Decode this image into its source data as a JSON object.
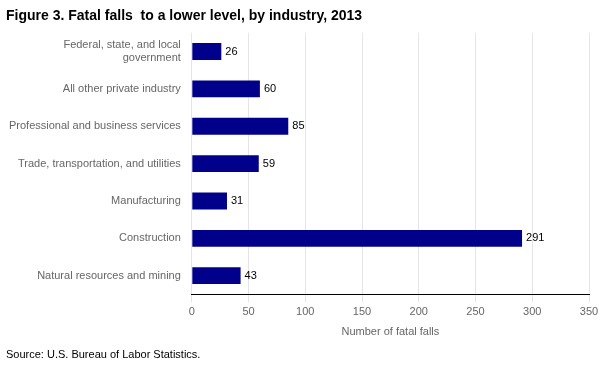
{
  "chart_data": {
    "type": "bar",
    "orientation": "horizontal",
    "title": "Figure 3. Fatal falls  to a lower level, by industry, 2013",
    "categories": [
      "Federal, state, and local\n   government",
      "All other private industry",
      "Professional and business services",
      "Trade, transportation, and utilities",
      "Manufacturing",
      "Construction",
      "Natural resources and mining"
    ],
    "values": [
      26,
      60,
      85,
      59,
      31,
      291,
      43
    ],
    "color": "#00008B",
    "xlabel": "Number of fatal falls",
    "xlim": [
      0,
      350
    ],
    "xticks": [
      0,
      50,
      100,
      150,
      200,
      250,
      300,
      350
    ],
    "grid": true,
    "data_labels": true,
    "annotation": "Source: U.S. Bureau of Labor Statistics."
  }
}
